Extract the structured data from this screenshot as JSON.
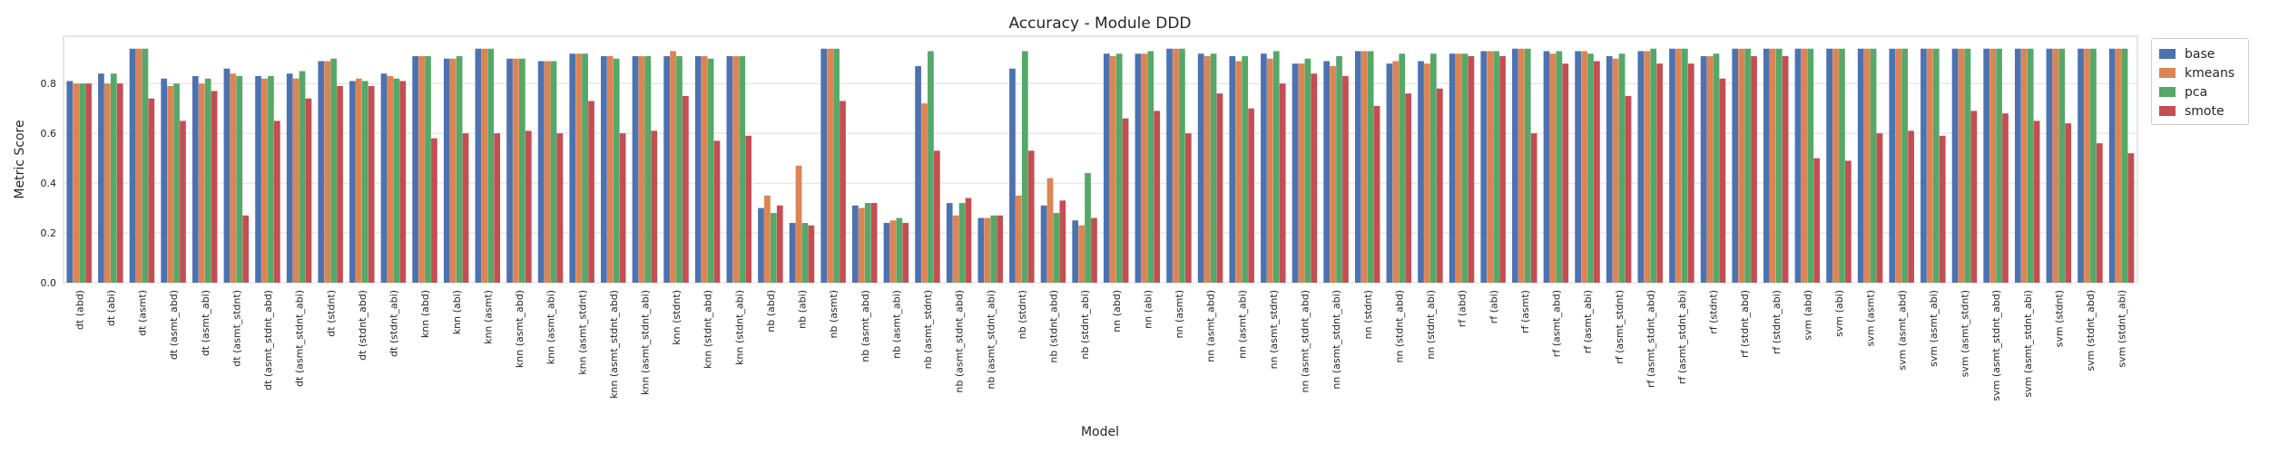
{
  "chart_data": {
    "type": "bar",
    "title": "Accuracy - Module DDD",
    "xlabel": "Model",
    "ylabel": "Metric Score",
    "ylim": [
      0,
      0.99
    ],
    "yticks": [
      "0.0",
      "0.2",
      "0.4",
      "0.6",
      "0.8"
    ],
    "grid": "horizontal",
    "legend_placement": "outside-top-right",
    "categories": [
      "dt (abd)",
      "dt (abi)",
      "dt (asmt)",
      "dt (asmt_abd)",
      "dt (asmt_abi)",
      "dt (asmt_stdnt)",
      "dt (asmt_stdnt_abd)",
      "dt (asmt_stdnt_abi)",
      "dt (stdnt)",
      "dt (stdnt_abd)",
      "dt (stdnt_abi)",
      "knn (abd)",
      "knn (abi)",
      "knn (asmt)",
      "knn (asmt_abd)",
      "knn (asmt_abi)",
      "knn (asmt_stdnt)",
      "knn (asmt_stdnt_abd)",
      "knn (asmt_stdnt_abi)",
      "knn (stdnt)",
      "knn (stdnt_abd)",
      "knn (stdnt_abi)",
      "nb (abd)",
      "nb (abi)",
      "nb (asmt)",
      "nb (asmt_abd)",
      "nb (asmt_abi)",
      "nb (asmt_stdnt)",
      "nb (asmt_stdnt_abd)",
      "nb (asmt_stdnt_abi)",
      "nb (stdnt)",
      "nb (stdnt_abd)",
      "nb (stdnt_abi)",
      "nn (abd)",
      "nn (abi)",
      "nn (asmt)",
      "nn (asmt_abd)",
      "nn (asmt_abi)",
      "nn (asmt_stdnt)",
      "nn (asmt_stdnt_abd)",
      "nn (asmt_stdnt_abi)",
      "nn (stdnt)",
      "nn (stdnt_abd)",
      "nn (stdnt_abi)",
      "rf (abd)",
      "rf (abi)",
      "rf (asmt)",
      "rf (asmt_abd)",
      "rf (asmt_abi)",
      "rf (asmt_stdnt)",
      "rf (asmt_stdnt_abd)",
      "rf (asmt_stdnt_abi)",
      "rf (stdnt)",
      "rf (stdnt_abd)",
      "rf (stdnt_abi)",
      "svm (abd)",
      "svm (abi)",
      "svm (asmt)",
      "svm (asmt_abd)",
      "svm (asmt_abi)",
      "svm (asmt_stdnt)",
      "svm (asmt_stdnt_abd)",
      "svm (asmt_stdnt_abi)",
      "svm (stdnt)",
      "svm (stdnt_abd)",
      "svm (stdnt_abi)"
    ],
    "series": [
      {
        "name": "base",
        "color": "#4c72b0",
        "values": [
          0.81,
          0.84,
          0.94,
          0.82,
          0.83,
          0.86,
          0.83,
          0.84,
          0.89,
          0.81,
          0.84,
          0.91,
          0.9,
          0.94,
          0.9,
          0.89,
          0.92,
          0.91,
          0.91,
          0.91,
          0.91,
          0.91,
          0.3,
          0.24,
          0.94,
          0.31,
          0.24,
          0.87,
          0.32,
          0.26,
          0.86,
          0.31,
          0.25,
          0.92,
          0.92,
          0.94,
          0.92,
          0.91,
          0.92,
          0.88,
          0.89,
          0.93,
          0.88,
          0.89,
          0.92,
          0.93,
          0.94,
          0.93,
          0.93,
          0.91,
          0.93,
          0.94,
          0.91,
          0.94,
          0.94,
          0.94,
          0.94,
          0.94,
          0.94,
          0.94,
          0.94,
          0.94,
          0.94,
          0.94,
          0.94,
          0.94
        ]
      },
      {
        "name": "kmeans",
        "color": "#dd8452",
        "values": [
          0.8,
          0.8,
          0.94,
          0.79,
          0.8,
          0.84,
          0.82,
          0.82,
          0.89,
          0.82,
          0.83,
          0.91,
          0.9,
          0.94,
          0.9,
          0.89,
          0.92,
          0.91,
          0.91,
          0.93,
          0.91,
          0.91,
          0.35,
          0.47,
          0.94,
          0.3,
          0.25,
          0.72,
          0.27,
          0.26,
          0.35,
          0.42,
          0.23,
          0.91,
          0.92,
          0.94,
          0.91,
          0.89,
          0.9,
          0.88,
          0.87,
          0.93,
          0.89,
          0.88,
          0.92,
          0.93,
          0.94,
          0.92,
          0.93,
          0.9,
          0.93,
          0.94,
          0.91,
          0.94,
          0.94,
          0.94,
          0.94,
          0.94,
          0.94,
          0.94,
          0.94,
          0.94,
          0.94,
          0.94,
          0.94,
          0.94
        ]
      },
      {
        "name": "pca",
        "color": "#55a868",
        "values": [
          0.8,
          0.84,
          0.94,
          0.8,
          0.82,
          0.83,
          0.83,
          0.85,
          0.9,
          0.81,
          0.82,
          0.91,
          0.91,
          0.94,
          0.9,
          0.89,
          0.92,
          0.9,
          0.91,
          0.91,
          0.9,
          0.91,
          0.28,
          0.24,
          0.94,
          0.32,
          0.26,
          0.93,
          0.32,
          0.27,
          0.93,
          0.28,
          0.44,
          0.92,
          0.93,
          0.94,
          0.92,
          0.91,
          0.93,
          0.9,
          0.91,
          0.93,
          0.92,
          0.92,
          0.92,
          0.93,
          0.94,
          0.93,
          0.92,
          0.92,
          0.94,
          0.94,
          0.92,
          0.94,
          0.94,
          0.94,
          0.94,
          0.94,
          0.94,
          0.94,
          0.94,
          0.94,
          0.94,
          0.94,
          0.94,
          0.94
        ]
      },
      {
        "name": "smote",
        "color": "#c44e52",
        "values": [
          0.8,
          0.8,
          0.74,
          0.65,
          0.77,
          0.27,
          0.65,
          0.74,
          0.79,
          0.79,
          0.81,
          0.58,
          0.6,
          0.6,
          0.61,
          0.6,
          0.73,
          0.6,
          0.61,
          0.75,
          0.57,
          0.59,
          0.31,
          0.23,
          0.73,
          0.32,
          0.24,
          0.53,
          0.34,
          0.27,
          0.53,
          0.33,
          0.26,
          0.66,
          0.69,
          0.6,
          0.76,
          0.7,
          0.8,
          0.84,
          0.83,
          0.71,
          0.76,
          0.78,
          0.91,
          0.91,
          0.6,
          0.88,
          0.89,
          0.75,
          0.88,
          0.88,
          0.82,
          0.91,
          0.91,
          0.5,
          0.49,
          0.6,
          0.61,
          0.59,
          0.69,
          0.68,
          0.65,
          0.64,
          0.56,
          0.52
        ]
      }
    ]
  }
}
